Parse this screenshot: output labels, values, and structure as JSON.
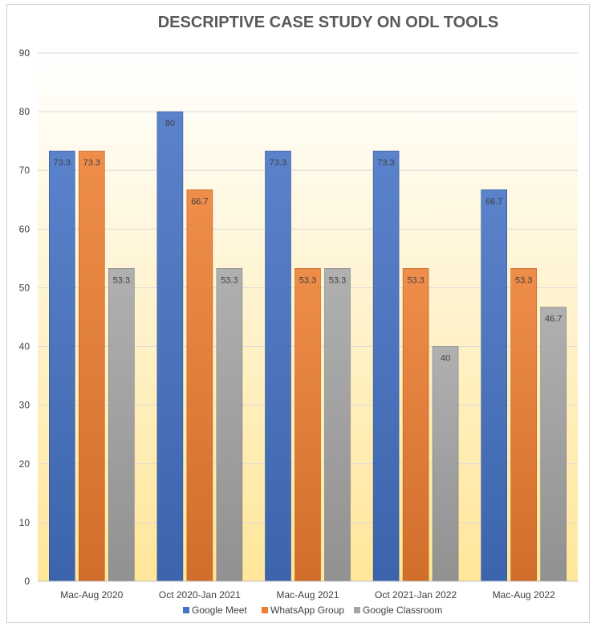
{
  "chart_data": {
    "type": "bar",
    "title": "DESCRIPTIVE CASE STUDY ON ODL TOOLS",
    "xlabel": "",
    "ylabel": "",
    "categories": [
      "Mac-Aug 2020",
      "Oct 2020-Jan 2021",
      "Mac-Aug 2021",
      "Oct 2021-Jan 2022",
      "Mac-Aug 2022"
    ],
    "series": [
      {
        "name": "Google Meet",
        "values": [
          73.3,
          80,
          73.3,
          73.3,
          66.7
        ],
        "color": "#4472C4"
      },
      {
        "name": "WhatsApp Group",
        "values": [
          73.3,
          66.7,
          53.3,
          53.3,
          53.3
        ],
        "color": "#ED7D31"
      },
      {
        "name": "Google Classroom",
        "values": [
          53.3,
          53.3,
          53.3,
          40,
          46.7
        ],
        "color": "#A5A5A5"
      }
    ],
    "data_labels": [
      [
        "73.3",
        "80",
        "73.3",
        "73.3",
        "66.7"
      ],
      [
        "73.3",
        "66.7",
        "53.3",
        "53.3",
        "53.3"
      ],
      [
        "53.3",
        "53.3",
        "53.3",
        "40",
        "46.7"
      ]
    ],
    "ylim": [
      0,
      90
    ],
    "yticks": [
      "0",
      "10",
      "20",
      "30",
      "40",
      "50",
      "60",
      "70",
      "80",
      "90"
    ],
    "grid": true,
    "legend_position": "bottom",
    "background_gradient": [
      "#FFFFFF",
      "#FFE699"
    ]
  }
}
